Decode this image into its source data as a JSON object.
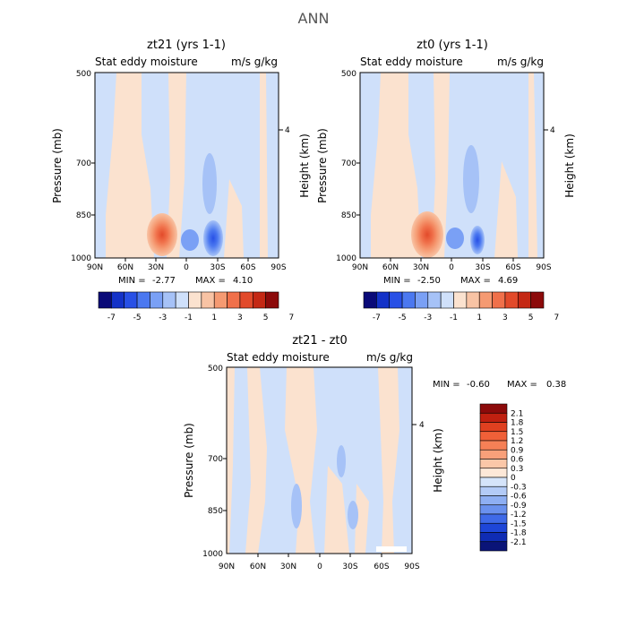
{
  "title": "ANN",
  "panels": [
    {
      "title": "zt21 (yrs 1-1)",
      "subtitle_left": "Stat eddy moisture",
      "subtitle_right": "m/s g/kg",
      "min_label": "MIN =",
      "min_value": "-2.77",
      "max_label": "MAX =",
      "max_value": "4.10"
    },
    {
      "title": "zt0 (yrs 1-1)",
      "subtitle_left": "Stat eddy moisture",
      "subtitle_right": "m/s g/kg",
      "min_label": "MIN =",
      "min_value": "-2.50",
      "max_label": "MAX =",
      "max_value": "4.69"
    },
    {
      "title": "zt21 - zt0",
      "subtitle_left": "Stat eddy moisture",
      "subtitle_right": "m/s g/kg",
      "min_label": "MIN =",
      "min_value": "-0.60",
      "max_label": "MAX =",
      "max_value": "0.38"
    }
  ],
  "axes": {
    "ylabel_left": "Pressure (mb)",
    "ylabel_right": "Height (km)",
    "x_ticks": [
      "90N",
      "60N",
      "30N",
      "0",
      "30S",
      "60S",
      "90S"
    ],
    "y_ticks": [
      "500",
      "700",
      "850",
      "1000"
    ],
    "y_right_ticks": [
      "4"
    ]
  },
  "colorbars": {
    "top": {
      "labels": [
        "-7",
        "-5",
        "-3",
        "-1",
        "1",
        "3",
        "5",
        "7"
      ],
      "colors": [
        "#0a0a78",
        "#1432c8",
        "#2850e6",
        "#4b78f0",
        "#7aa0f5",
        "#a6c2f7",
        "#cfe0fa",
        "#fbe2cf",
        "#f8c3a4",
        "#f59a72",
        "#f0704a",
        "#e24a2a",
        "#c42814",
        "#8c0a0a"
      ]
    },
    "bottom": {
      "labels": [
        "2.1",
        "1.8",
        "1.5",
        "1.2",
        "0.9",
        "0.6",
        "0.3",
        "0",
        "-0.3",
        "-0.6",
        "-0.9",
        "-1.2",
        "-1.5",
        "-1.8",
        "-2.1"
      ],
      "colors": [
        "#8c0a0a",
        "#c02010",
        "#e04020",
        "#f06038",
        "#f58056",
        "#f8a07a",
        "#fbc7a8",
        "#fde8d8",
        "#d5e4fa",
        "#b3cbf7",
        "#8eaff3",
        "#6a91ee",
        "#3f6ae8",
        "#1e46d8",
        "#0f2cb4",
        "#0a1478"
      ]
    }
  },
  "chart_data": [
    {
      "type": "heatmap",
      "title": "zt21 (yrs 1-1)",
      "x": [
        "90N",
        "60N",
        "30N",
        "0",
        "30S",
        "60S",
        "90S"
      ],
      "y": [
        500,
        700,
        850,
        1000
      ],
      "min": -2.77,
      "max": 4.1,
      "features": [
        {
          "lat": "30N",
          "p": 950,
          "value": 4.1
        },
        {
          "lat": "15S",
          "p": 900,
          "value": -2.8
        }
      ]
    },
    {
      "type": "heatmap",
      "title": "zt0 (yrs 1-1)",
      "x": [
        "90N",
        "60N",
        "30N",
        "0",
        "30S",
        "60S",
        "90S"
      ],
      "y": [
        500,
        700,
        850,
        1000
      ],
      "min": -2.5,
      "max": 4.69,
      "features": [
        {
          "lat": "30N",
          "p": 950,
          "value": 4.7
        },
        {
          "lat": "15S",
          "p": 930,
          "value": -2.5
        }
      ]
    },
    {
      "type": "heatmap",
      "title": "zt21 - zt0",
      "x": [
        "90N",
        "60N",
        "30N",
        "0",
        "30S",
        "60S",
        "90S"
      ],
      "y": [
        500,
        700,
        850,
        1000
      ],
      "min": -0.6,
      "max": 0.38
    }
  ]
}
